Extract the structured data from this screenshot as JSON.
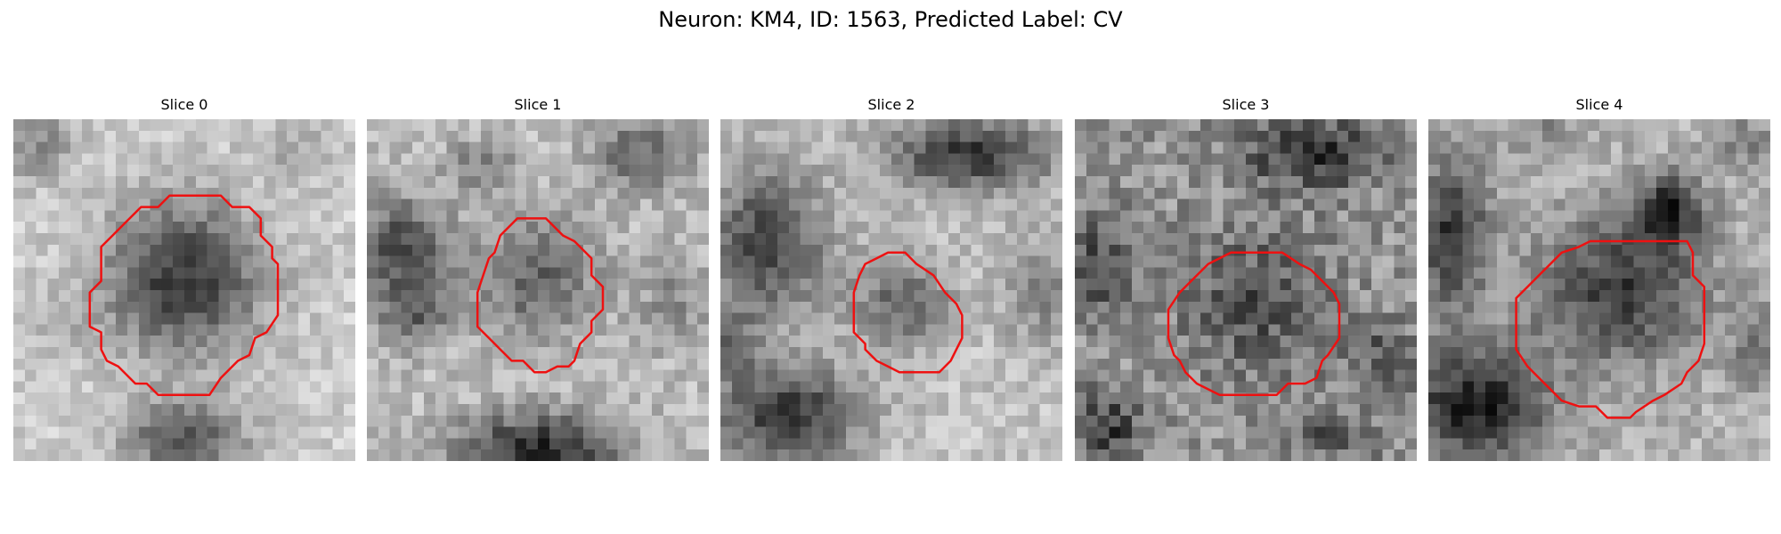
{
  "figure": {
    "title": "Neuron: KM4, ID: 1563, Predicted Label: CV"
  },
  "colors": {
    "contour": "#ee1111",
    "background": "#ffffff"
  },
  "slices": [
    {
      "title": "Slice 0"
    },
    {
      "title": "Slice 1"
    },
    {
      "title": "Slice 2"
    },
    {
      "title": "Slice 3"
    },
    {
      "title": "Slice 4"
    }
  ]
}
